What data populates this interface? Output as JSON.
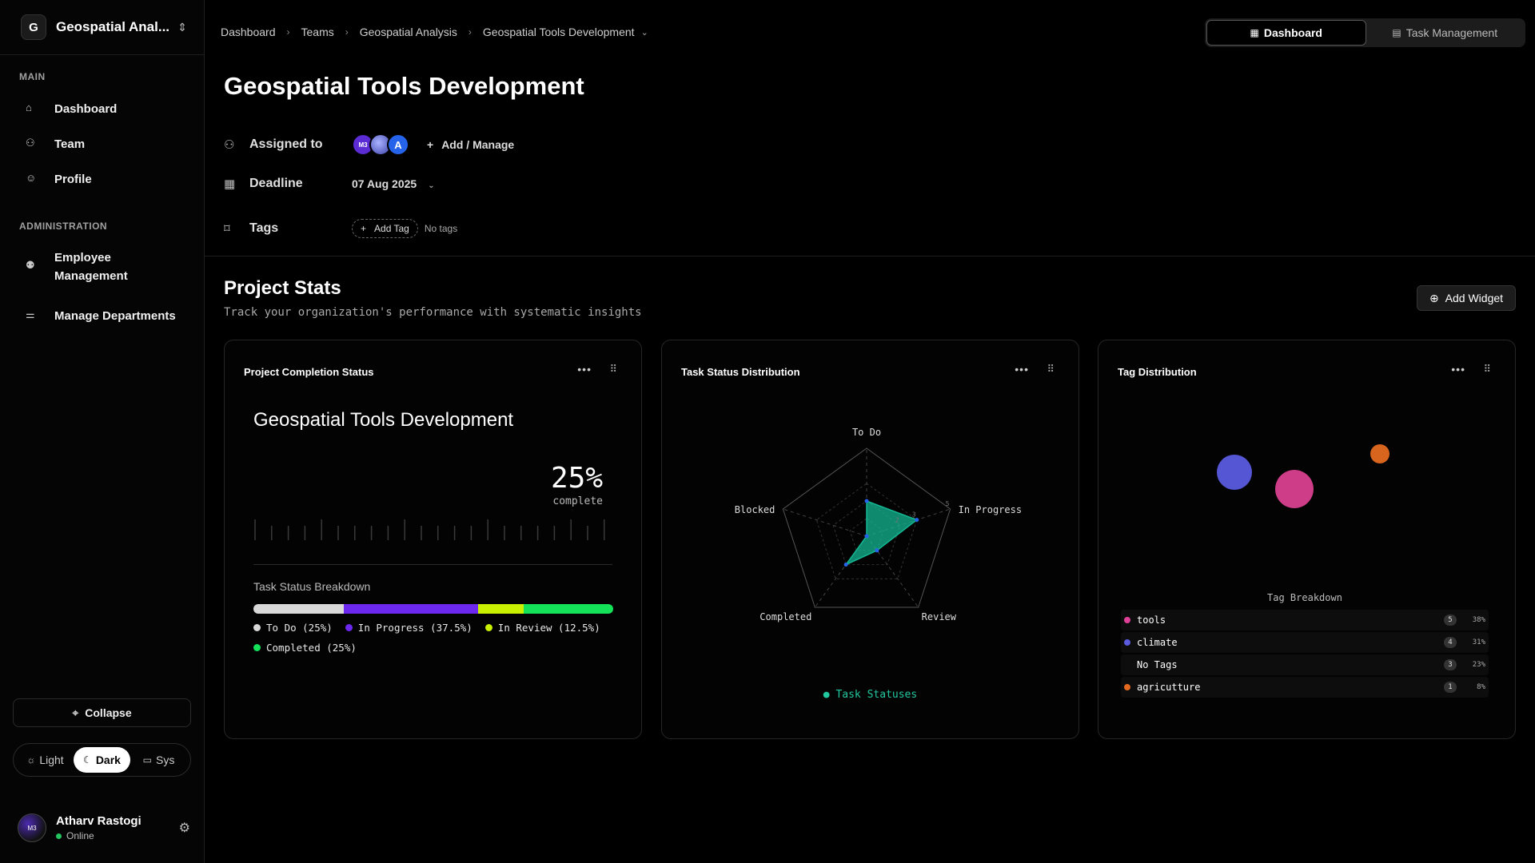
{
  "sidebar": {
    "workspace": {
      "initial": "G",
      "name": "Geospatial Anal..."
    },
    "sections": [
      {
        "title": "MAIN",
        "items": [
          {
            "label": "Dashboard",
            "icon": "home-icon"
          },
          {
            "label": "Team",
            "icon": "team-icon"
          },
          {
            "label": "Profile",
            "icon": "profile-icon"
          }
        ]
      },
      {
        "title": "ADMINISTRATION",
        "items": [
          {
            "label": "Employee Management",
            "icon": "employee-icon"
          },
          {
            "label": "Manage Departments",
            "icon": "departments-icon"
          }
        ]
      }
    ],
    "collapse_label": "Collapse",
    "theme": {
      "light": "Light",
      "dark": "Dark",
      "sys": "Sys",
      "active": "dark"
    },
    "user": {
      "name": "Atharv Rastogi",
      "status": "Online",
      "avatar_text": "M3"
    }
  },
  "breadcrumb": [
    "Dashboard",
    "Teams",
    "Geospatial Analysis",
    "Geospatial Tools Development"
  ],
  "view_switch": {
    "dashboard": "Dashboard",
    "tasks": "Task Management",
    "active": "dashboard"
  },
  "project": {
    "title": "Geospatial Tools Development",
    "assigned_label": "Assigned to",
    "assignees": [
      {
        "text": "M3",
        "color": "#5b2bd4"
      },
      {
        "text": "",
        "color": "#6a6adf"
      },
      {
        "text": "A",
        "color": "#2563eb"
      }
    ],
    "add_manage": "Add / Manage",
    "deadline_label": "Deadline",
    "deadline": "07 Aug 2025",
    "tags_label": "Tags",
    "add_tag": "Add Tag",
    "no_tags": "No tags"
  },
  "stats": {
    "title": "Project Stats",
    "subtitle": "Track your organization's performance with systematic insights",
    "add_widget": "Add Widget"
  },
  "completion_card": {
    "title": "Project Completion Status",
    "project_name": "Geospatial Tools Development",
    "percent": "25%",
    "percent_value": 25,
    "complete_label": "complete",
    "breakdown_label": "Task Status Breakdown",
    "segments": [
      {
        "label": "To Do (25%)",
        "value": 25,
        "color": "#d9d9d9"
      },
      {
        "label": "In Progress (37.5%)",
        "value": 37.5,
        "color": "#6d28f0"
      },
      {
        "label": "In Review (12.5%)",
        "value": 12.5,
        "color": "#c8f000"
      },
      {
        "label": "Completed (25%)",
        "value": 25,
        "color": "#14e35a"
      }
    ]
  },
  "radar_card": {
    "title": "Task Status Distribution",
    "legend": "Task Statuses",
    "color": "#14b894"
  },
  "tag_card": {
    "title": "Tag Distribution",
    "breakdown_label": "Tag Breakdown",
    "bubbles": [
      {
        "tag": "climate",
        "color": "#5a5bde"
      },
      {
        "tag": "tools",
        "color": "#d9408f"
      },
      {
        "tag": "agricutture",
        "color": "#e46a1f"
      }
    ],
    "rows": [
      {
        "name": "tools",
        "count": "5",
        "pct": "38%",
        "color": "#e0409a"
      },
      {
        "name": "climate",
        "count": "4",
        "pct": "31%",
        "color": "#5a5bde"
      },
      {
        "name": "No Tags",
        "count": "3",
        "pct": "23%",
        "color": ""
      },
      {
        "name": "agricutture",
        "count": "1",
        "pct": "8%",
        "color": "#e46a1f"
      }
    ]
  },
  "chart_data": {
    "type": "radar",
    "categories": [
      "To Do",
      "In Progress",
      "Review",
      "Completed",
      "Blocked"
    ],
    "series": [
      {
        "name": "Task Statuses",
        "values": [
          2,
          3,
          1,
          2,
          0
        ]
      }
    ],
    "rlim": [
      0,
      5
    ],
    "ticks": [
      "5",
      "3",
      "2"
    ]
  }
}
